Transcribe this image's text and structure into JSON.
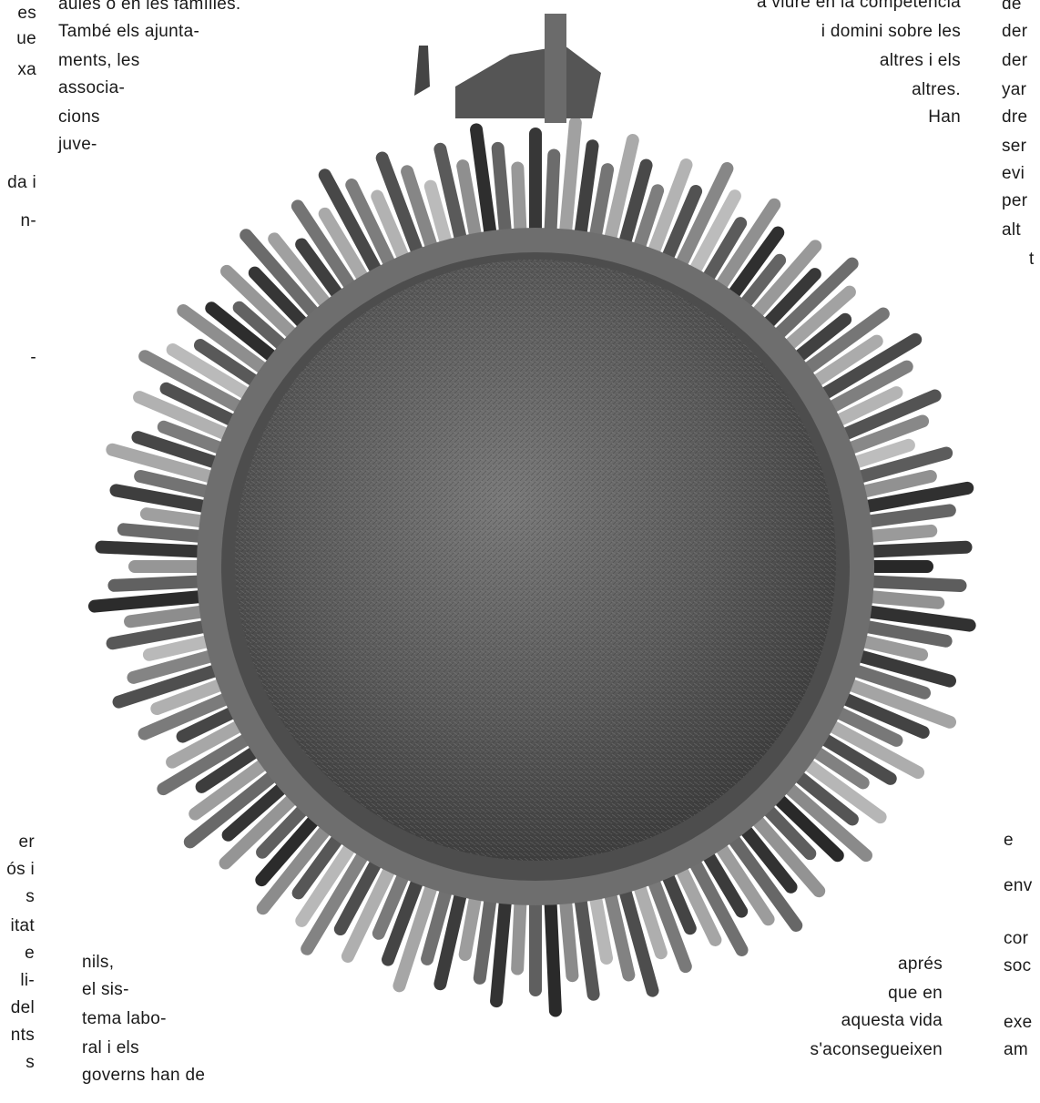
{
  "left_edge": {
    "lines": [
      "es",
      "ue",
      "xa",
      "da i",
      "n-",
      "-"
    ]
  },
  "top_left": {
    "lines": [
      "aules o en les famílies.",
      "També els ajunta-",
      "ments, les",
      "associa-",
      "cions",
      "juve-"
    ]
  },
  "top_right": {
    "lines": [
      "a viure en la competència",
      "i domini sobre les",
      "altres i els",
      "altres.",
      "Han"
    ]
  },
  "right_edge_top": {
    "lines": [
      "de",
      "der",
      "der",
      "yar",
      "dre",
      "ser",
      "evi",
      "per",
      "alt",
      "t"
    ]
  },
  "bottom_left_edge": {
    "lines": [
      "er",
      "ós i",
      "s",
      "itat",
      "e",
      "li-",
      "del",
      "nts",
      "s"
    ]
  },
  "bottom_left": {
    "lines": [
      "nils,",
      "el sis-",
      "tema labo-",
      "ral i els",
      "governs han de"
    ]
  },
  "bottom_right": {
    "lines": [
      "aprés",
      "que en",
      "aquesta vida",
      "s'aconsegueixen"
    ]
  },
  "right_edge_bottom": {
    "lines": [
      "e",
      "env",
      "cor",
      "soc",
      "exe",
      "am"
    ]
  }
}
